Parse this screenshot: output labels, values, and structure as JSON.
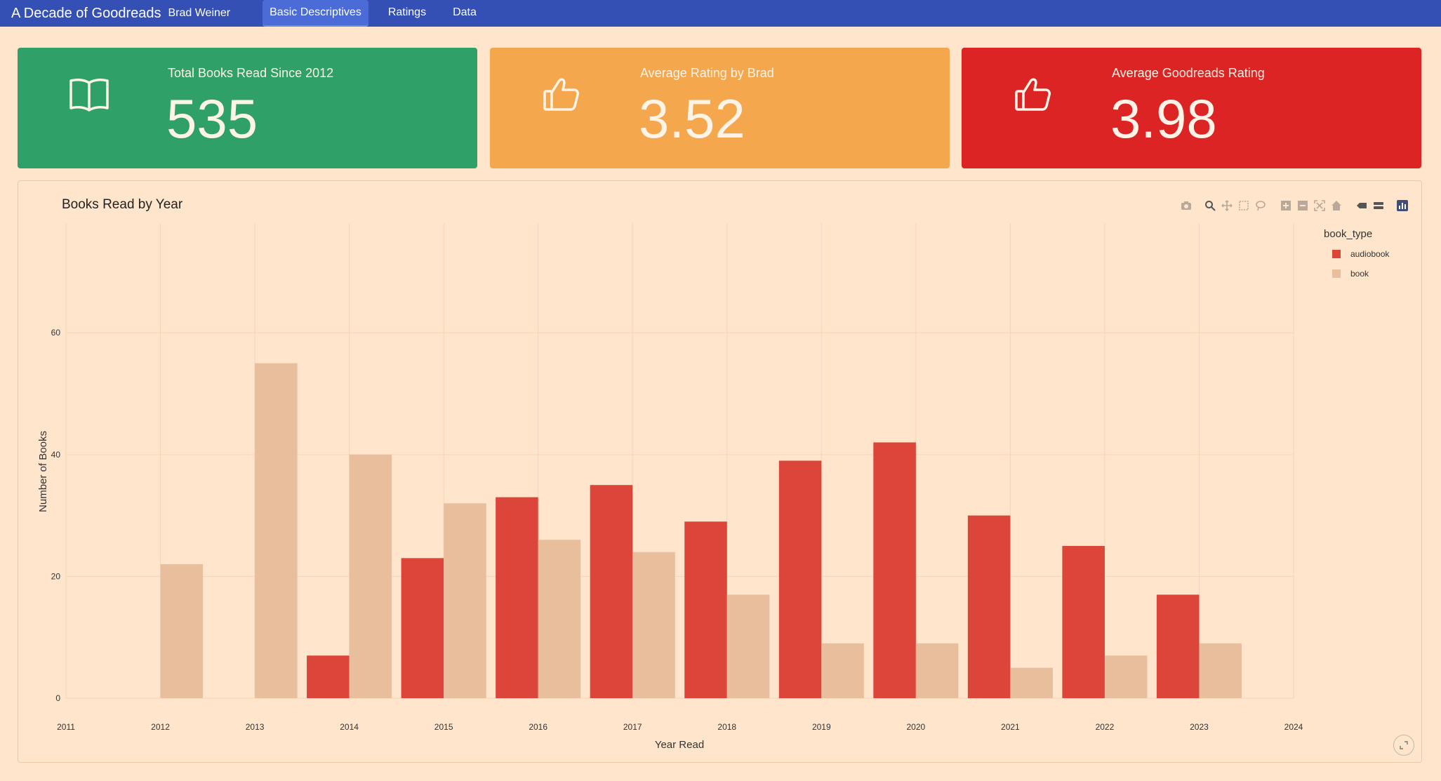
{
  "navbar": {
    "title": "A Decade of Goodreads",
    "author": "Brad Weiner",
    "tabs": [
      {
        "label": "Basic Descriptives",
        "active": true
      },
      {
        "label": "Ratings",
        "active": false
      },
      {
        "label": "Data",
        "active": false
      }
    ],
    "color": "#3450b5"
  },
  "value_boxes": [
    {
      "label": "Total Books Read Since 2012",
      "value": "535",
      "icon": "book-open-icon",
      "color": "#2fa067"
    },
    {
      "label": "Average Rating by Brad",
      "value": "3.52",
      "icon": "thumbs-up-icon",
      "color": "#f4a74c"
    },
    {
      "label": "Average Goodreads Rating",
      "value": "3.98",
      "icon": "thumbs-up-icon",
      "color": "#dc2424"
    }
  ],
  "modebar_icons": [
    "camera-icon",
    "zoom-icon",
    "pan-icon",
    "box-select-icon",
    "lasso-icon",
    "zoom-in-icon",
    "zoom-out-icon",
    "autoscale-icon",
    "reset-axes-icon",
    "spike-lines-icon",
    "compare-hover-icon",
    "plotly-logo-icon"
  ],
  "chart_data": {
    "type": "bar",
    "title": "Books Read by Year",
    "xlabel": "Year Read",
    "ylabel": "Number of Books",
    "legend_title": "book_type",
    "legend_position": "top-right",
    "grid": true,
    "xlim": [
      2011,
      2024
    ],
    "ylim": [
      0,
      78
    ],
    "x_ticks": [
      2011,
      2012,
      2013,
      2014,
      2015,
      2016,
      2017,
      2018,
      2019,
      2020,
      2021,
      2022,
      2023,
      2024
    ],
    "y_ticks": [
      0,
      20,
      40,
      60
    ],
    "x": [
      2012,
      2013,
      2014,
      2015,
      2016,
      2017,
      2018,
      2019,
      2020,
      2021,
      2022,
      2023
    ],
    "series": [
      {
        "name": "audiobook",
        "color": "#dc463a",
        "values": [
          0,
          0,
          7,
          23,
          33,
          35,
          29,
          39,
          42,
          30,
          25,
          17
        ]
      },
      {
        "name": "book",
        "color": "#e8be9c",
        "values": [
          22,
          55,
          40,
          32,
          26,
          24,
          17,
          9,
          9,
          5,
          7,
          9
        ]
      }
    ]
  }
}
